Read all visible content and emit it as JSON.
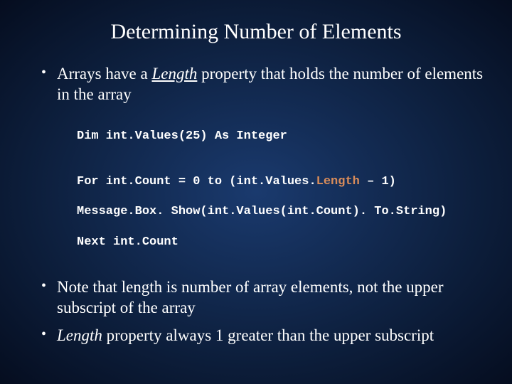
{
  "title": "Determining Number of Elements",
  "bullets": {
    "b1_pre": "Arrays have a ",
    "b1_len": "Length",
    "b1_post": " property that holds the number of elements in the array",
    "b2": "Note that length is number of array elements, not the upper subscript of the array",
    "b3_len": "Length",
    "b3_post": " property always 1 greater than the upper subscript"
  },
  "code": {
    "line1": "Dim int.Values(25) As Integer",
    "blank": "",
    "line2a": "For int.Count = 0 to (int.Values.",
    "line2hl": "Length",
    "line2b": " – 1)",
    "line3": "Message.Box. Show(int.Values(int.Count). To.String)",
    "line4": "Next int.Count"
  },
  "colors": {
    "text": "#ffffff",
    "highlight": "#d98c5a",
    "bg_center": "#1a3a6e",
    "bg_edge": "#050d1f"
  },
  "typography": {
    "title_fontsize": 30,
    "bullet_fontsize": 23,
    "code_fontsize": 17,
    "body_font": "Times New Roman",
    "code_font": "Courier New"
  }
}
